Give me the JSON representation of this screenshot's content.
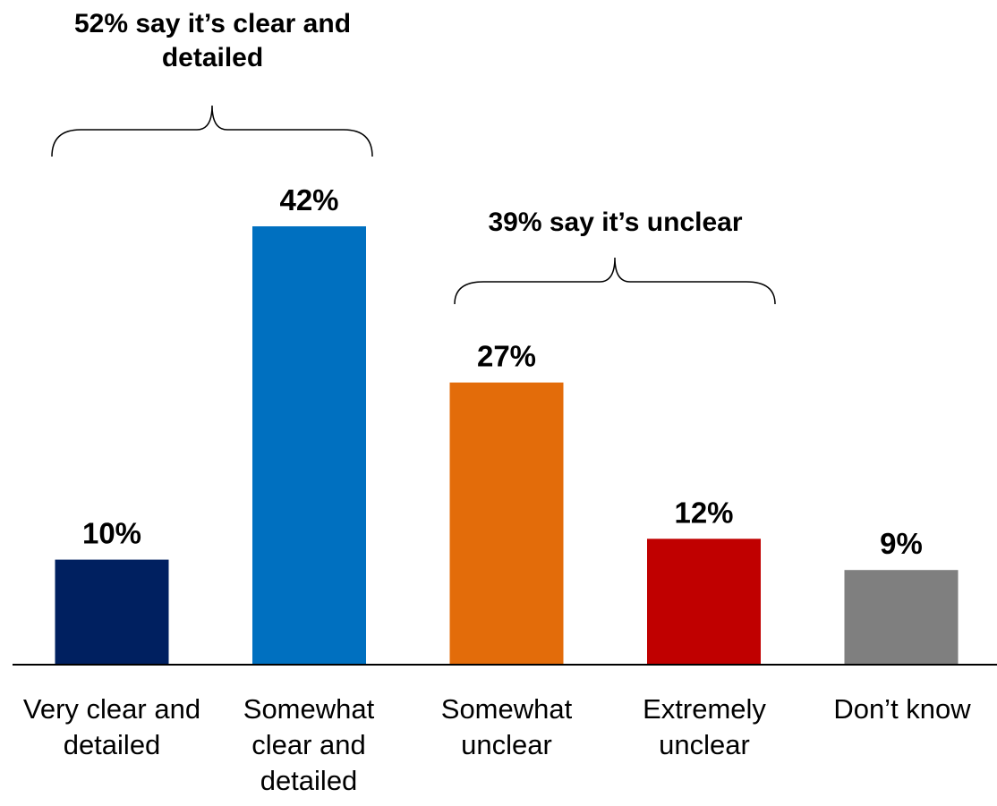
{
  "chart_data": {
    "type": "bar",
    "categories": [
      "Very clear and\ndetailed",
      "Somewhat\nclear and\ndetailed",
      "Somewhat\nunclear",
      "Extremely\nunclear",
      "Don’t know"
    ],
    "values": [
      10,
      42,
      27,
      12,
      9
    ],
    "value_labels": [
      "10%",
      "42%",
      "27%",
      "12%",
      "9%"
    ],
    "colors": [
      "#002060",
      "#0070C0",
      "#E36C0A",
      "#C00000",
      "#7F7F7F"
    ],
    "ylim": [
      0,
      42
    ],
    "grid": false,
    "annotations": [
      {
        "text": "52% say it’s clear and detailed",
        "spans": [
          0,
          1
        ]
      },
      {
        "text": "39% say it’s unclear",
        "spans": [
          2,
          3
        ]
      }
    ]
  }
}
